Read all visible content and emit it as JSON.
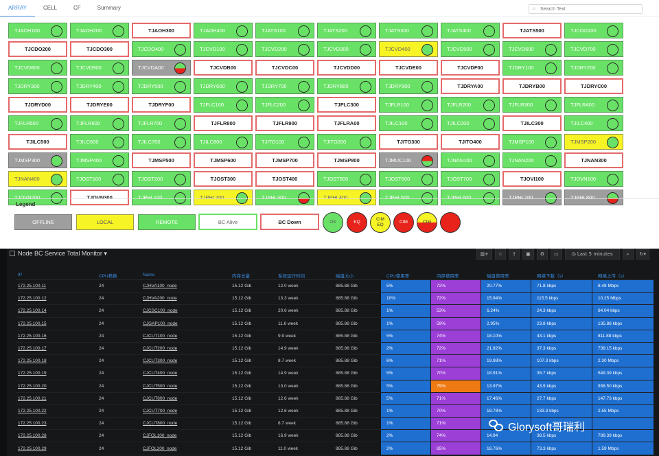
{
  "tabs": [
    "ARRAY",
    "CELL",
    "CF",
    "Summary"
  ],
  "search": {
    "placeholder": "Search Text"
  },
  "colors": {
    "remote": "#69e166",
    "local": "#f7f425",
    "offline": "#9e9e9e",
    "down_border": "#e46a6a",
    "alarm_red": "#e8231c",
    "grafana_bg": "#161719",
    "cell_blue": "#1f6fd0",
    "cell_purple": "#9b3fd6",
    "cell_orange": "#ef7a13"
  },
  "nodes": [
    {
      "name": "TJAOH100",
      "status": "REMOTE",
      "ind": "ok"
    },
    {
      "name": "TJAOH200",
      "status": "REMOTE",
      "ind": "ok"
    },
    {
      "name": "TJAOH300",
      "status": "DOWN",
      "ind": "none"
    },
    {
      "name": "TJAOH400",
      "status": "REMOTE",
      "ind": "ok"
    },
    {
      "name": "TJATS100",
      "status": "REMOTE",
      "ind": "ok"
    },
    {
      "name": "TJATS200",
      "status": "REMOTE",
      "ind": "ok"
    },
    {
      "name": "TJATS300",
      "status": "REMOTE",
      "ind": "ok"
    },
    {
      "name": "TJATS400",
      "status": "REMOTE",
      "ind": "ok"
    },
    {
      "name": "TJATS500",
      "status": "DOWN",
      "ind": "none"
    },
    {
      "name": "TJCDO100",
      "status": "REMOTE",
      "ind": "ok"
    },
    {
      "name": "TJCDO200",
      "status": "DOWN",
      "ind": "none"
    },
    {
      "name": "TJCDO300",
      "status": "DOWN",
      "ind": "none"
    },
    {
      "name": "TJCDO400",
      "status": "REMOTE",
      "ind": "ok"
    },
    {
      "name": "TJCVD100",
      "status": "REMOTE",
      "ind": "ok"
    },
    {
      "name": "TJCVD200",
      "status": "REMOTE",
      "ind": "ok"
    },
    {
      "name": "TJCVD300",
      "status": "REMOTE",
      "ind": "ok"
    },
    {
      "name": "TJCVD400",
      "status": "LOCAL",
      "ind": "ok"
    },
    {
      "name": "TJCVD500",
      "status": "REMOTE",
      "ind": "ok"
    },
    {
      "name": "TJCVD600",
      "status": "REMOTE",
      "ind": "ok"
    },
    {
      "name": "TJCVD700",
      "status": "REMOTE",
      "ind": "ok"
    },
    {
      "name": "TJCVD800",
      "status": "REMOTE",
      "ind": "ok"
    },
    {
      "name": "TJCVD900",
      "status": "REMOTE",
      "ind": "ok"
    },
    {
      "name": "TJCVDA00",
      "status": "OFFLINE",
      "ind": "eq"
    },
    {
      "name": "TJCVDB00",
      "status": "DOWN",
      "ind": "none"
    },
    {
      "name": "TJCVDC00",
      "status": "DOWN",
      "ind": "none"
    },
    {
      "name": "TJCVDD00",
      "status": "DOWN",
      "ind": "none"
    },
    {
      "name": "TJCVDE00",
      "status": "DOWN",
      "ind": "none"
    },
    {
      "name": "TJCVDF00",
      "status": "DOWN",
      "ind": "none"
    },
    {
      "name": "TJDRY100",
      "status": "REMOTE",
      "ind": "ok"
    },
    {
      "name": "TJDRY200",
      "status": "REMOTE",
      "ind": "ok"
    },
    {
      "name": "TJDRY300",
      "status": "REMOTE",
      "ind": "ok"
    },
    {
      "name": "TJDRY400",
      "status": "REMOTE",
      "ind": "ok"
    },
    {
      "name": "TJDRY500",
      "status": "REMOTE",
      "ind": "ok"
    },
    {
      "name": "TJDRY600",
      "status": "REMOTE",
      "ind": "ok"
    },
    {
      "name": "TJDRY700",
      "status": "REMOTE",
      "ind": "ok"
    },
    {
      "name": "TJDRY800",
      "status": "REMOTE",
      "ind": "ok"
    },
    {
      "name": "TJDRY900",
      "status": "REMOTE",
      "ind": "ok"
    },
    {
      "name": "TJDRYA00",
      "status": "DOWN",
      "ind": "none"
    },
    {
      "name": "TJDRYB00",
      "status": "DOWN",
      "ind": "none"
    },
    {
      "name": "TJDRYC00",
      "status": "DOWN",
      "ind": "none"
    },
    {
      "name": "TJDRYD00",
      "status": "DOWN",
      "ind": "none"
    },
    {
      "name": "TJDRYE00",
      "status": "DOWN",
      "ind": "none"
    },
    {
      "name": "TJDRYF00",
      "status": "DOWN",
      "ind": "none"
    },
    {
      "name": "TJFLC100",
      "status": "REMOTE",
      "ind": "ok"
    },
    {
      "name": "TJFLC200",
      "status": "REMOTE",
      "ind": "ok"
    },
    {
      "name": "TJFLC300",
      "status": "DOWN",
      "ind": "none"
    },
    {
      "name": "TJFLR100",
      "status": "REMOTE",
      "ind": "ok"
    },
    {
      "name": "TJFLR200",
      "status": "REMOTE",
      "ind": "ok"
    },
    {
      "name": "TJFLR300",
      "status": "REMOTE",
      "ind": "ok"
    },
    {
      "name": "TJFLR400",
      "status": "REMOTE",
      "ind": "ok"
    },
    {
      "name": "TJFLR500",
      "status": "REMOTE",
      "ind": "ok"
    },
    {
      "name": "TJFLR600",
      "status": "REMOTE",
      "ind": "ok"
    },
    {
      "name": "TJFLR700",
      "status": "REMOTE",
      "ind": "ok"
    },
    {
      "name": "TJFLR800",
      "status": "DOWN",
      "ind": "none"
    },
    {
      "name": "TJFLR900",
      "status": "DOWN",
      "ind": "none"
    },
    {
      "name": "TJFLRA00",
      "status": "DOWN",
      "ind": "none"
    },
    {
      "name": "TJILC100",
      "status": "REMOTE",
      "ind": "ok"
    },
    {
      "name": "TJILC200",
      "status": "REMOTE",
      "ind": "ok"
    },
    {
      "name": "TJILC300",
      "status": "DOWN",
      "ind": "none"
    },
    {
      "name": "TJILC400",
      "status": "REMOTE",
      "ind": "ok"
    },
    {
      "name": "TJILC500",
      "status": "DOWN",
      "ind": "none"
    },
    {
      "name": "TJILC600",
      "status": "REMOTE",
      "ind": "ok"
    },
    {
      "name": "TJILC700",
      "status": "REMOTE",
      "ind": "ok"
    },
    {
      "name": "TJILC800",
      "status": "REMOTE",
      "ind": "ok"
    },
    {
      "name": "TJITO100",
      "status": "REMOTE",
      "ind": "ok"
    },
    {
      "name": "TJITO200",
      "status": "REMOTE",
      "ind": "ok"
    },
    {
      "name": "TJITO300",
      "status": "DOWN",
      "ind": "none"
    },
    {
      "name": "TJITO400",
      "status": "DOWN",
      "ind": "none"
    },
    {
      "name": "TJMSP100",
      "status": "REMOTE",
      "ind": "ok"
    },
    {
      "name": "TJMSP200",
      "status": "LOCAL",
      "ind": "ok"
    },
    {
      "name": "TJMSP300",
      "status": "OFFLINE",
      "ind": "ok"
    },
    {
      "name": "TJMSP400",
      "status": "REMOTE",
      "ind": "ok"
    },
    {
      "name": "TJMSP500",
      "status": "DOWN",
      "ind": "none"
    },
    {
      "name": "TJMSP600",
      "status": "DOWN",
      "ind": "none"
    },
    {
      "name": "TJMSP700",
      "status": "DOWN",
      "ind": "none"
    },
    {
      "name": "TJMSP800",
      "status": "DOWN",
      "ind": "none"
    },
    {
      "name": "TJMUC100",
      "status": "OFFLINE",
      "ind": "cimeq"
    },
    {
      "name": "TJNAN100",
      "status": "REMOTE",
      "ind": "ok"
    },
    {
      "name": "TJNAN200",
      "status": "REMOTE",
      "ind": "ok"
    },
    {
      "name": "TJNAN300",
      "status": "DOWN",
      "ind": "none"
    },
    {
      "name": "TJNAN400",
      "status": "LOCAL",
      "ind": "ok"
    },
    {
      "name": "TJOST100",
      "status": "REMOTE",
      "ind": "ok"
    },
    {
      "name": "TJOST200",
      "status": "REMOTE",
      "ind": "ok"
    },
    {
      "name": "TJOST300",
      "status": "DOWN",
      "ind": "none"
    },
    {
      "name": "TJOST400",
      "status": "DOWN",
      "ind": "none"
    },
    {
      "name": "TJOST500",
      "status": "REMOTE",
      "ind": "ok"
    },
    {
      "name": "TJOST600",
      "status": "REMOTE",
      "ind": "ok"
    },
    {
      "name": "TJOST700",
      "status": "REMOTE",
      "ind": "ok"
    },
    {
      "name": "TJOVI100",
      "status": "DOWN",
      "ind": "none"
    },
    {
      "name": "TJOVN100",
      "status": "REMOTE",
      "ind": "ok"
    },
    {
      "name": "TJOVN200",
      "status": "REMOTE",
      "ind": "ok"
    },
    {
      "name": "TJOVN300",
      "status": "DOWN",
      "ind": "none"
    },
    {
      "name": "TJPHL100",
      "status": "REMOTE",
      "ind": "ok"
    },
    {
      "name": "TJPHL200",
      "status": "LOCAL",
      "ind": "ok"
    },
    {
      "name": "TJPHL300",
      "status": "REMOTE",
      "ind": "eq"
    },
    {
      "name": "TJPHL400",
      "status": "LOCAL",
      "ind": "ok"
    },
    {
      "name": "TJPHL500",
      "status": "REMOTE",
      "ind": "ok"
    },
    {
      "name": "TJPHL600",
      "status": "REMOTE",
      "ind": "ok"
    },
    {
      "name": "TJPHL700",
      "status": "OFFLINE",
      "ind": "ok"
    },
    {
      "name": "TJPHL800",
      "status": "OFFLINE",
      "ind": "eq"
    }
  ],
  "legend": {
    "title": "Legend",
    "offline": "OFFLINE",
    "local": "LOCAL",
    "remote": "REMOTE",
    "bc_alive": "BC Alive",
    "bc_down": "BC Down",
    "circles": [
      {
        "top": "OK",
        "bottom": "",
        "style": "ok"
      },
      {
        "top": "",
        "bottom": "EQ",
        "style": "eq"
      },
      {
        "top": "CIM",
        "bottom": "EQ",
        "style": "cimeq_y"
      },
      {
        "top": "CIM",
        "bottom": "",
        "style": "cim_r"
      },
      {
        "top": "CIM",
        "bottom": "",
        "style": "cim_y"
      },
      {
        "top": "",
        "bottom": "",
        "style": "red"
      }
    ]
  },
  "dashboard": {
    "title": "Node BC Service Total Monitor",
    "caret": "▾",
    "time_range": "Last 5 minutes",
    "toolbar_icons": [
      "graph-add-icon",
      "star-icon",
      "share-icon",
      "save-icon",
      "settings-icon",
      "tv-icon",
      "clock-icon",
      "zoom-icon",
      "refresh-icon"
    ],
    "columns": [
      "IP",
      "CPU核数",
      "Name",
      "内存总量",
      "系统运行时间",
      "磁盘大小",
      "CPU使用率",
      "内存使用率",
      "磁盘使用率",
      "网络下载（s）",
      "网络上传（s）"
    ],
    "rows": [
      {
        "ip": "172.25.100.11",
        "cpu": "24",
        "name": "CJHVA100_node",
        "mem": "15.12 Gib",
        "uptime": "12.0 week",
        "disk": "885.88 Gib",
        "cpu_use": "5%",
        "mem_use": "72%",
        "mem_color": "purple",
        "disk_use": "20.77%",
        "net_down": "71.8 kbps",
        "net_up": "8.48 Mbps"
      },
      {
        "ip": "172.25.100.12",
        "cpu": "24",
        "name": "CJHVA200_node",
        "mem": "15.12 Gib",
        "uptime": "13.3 week",
        "disk": "885.88 Gib",
        "cpu_use": "10%",
        "mem_use": "72%",
        "mem_color": "purple",
        "disk_use": "15.94%",
        "net_down": "115.5 kbps",
        "net_up": "10.25 Mbps"
      },
      {
        "ip": "172.25.100.14",
        "cpu": "24",
        "name": "CJCSC100_node",
        "mem": "15.12 Gib",
        "uptime": "20.6 week",
        "disk": "885.88 Gib",
        "cpu_use": "1%",
        "mem_use": "53%",
        "mem_color": "purple",
        "disk_use": "6.24%",
        "net_down": "24.3 kbps",
        "net_up": "64.04 kbps"
      },
      {
        "ip": "172.25.100.15",
        "cpu": "24",
        "name": "CJGAP100_node",
        "mem": "15.12 Gib",
        "uptime": "11.6 week",
        "disk": "885.88 Gib",
        "cpu_use": "1%",
        "mem_use": "59%",
        "mem_color": "purple",
        "disk_use": "2.95%",
        "net_down": "23.8 kbps",
        "net_up": "135.88 kbps"
      },
      {
        "ip": "172.25.100.16",
        "cpu": "24",
        "name": "CJCUT100_node",
        "mem": "15.12 Gib",
        "uptime": "9.9 week",
        "disk": "885.88 Gib",
        "cpu_use": "5%",
        "mem_use": "74%",
        "mem_color": "purple",
        "disk_use": "18.10%",
        "net_down": "43.1 kbps",
        "net_up": "811.88 kbps"
      },
      {
        "ip": "172.25.100.17",
        "cpu": "24",
        "name": "CJCUT200_node",
        "mem": "15.12 Gib",
        "uptime": "14.9 week",
        "disk": "885.88 Gib",
        "cpu_use": "2%",
        "mem_use": "72%",
        "mem_color": "purple",
        "disk_use": "21.82%",
        "net_down": "37.3 kbps",
        "net_up": "739.15 kbps"
      },
      {
        "ip": "172.25.100.18",
        "cpu": "24",
        "name": "CJCUT300_node",
        "mem": "15.12 Gib",
        "uptime": "8.7 week",
        "disk": "885.88 Gib",
        "cpu_use": "6%",
        "mem_use": "71%",
        "mem_color": "purple",
        "disk_use": "19.98%",
        "net_down": "107.3 kbps",
        "net_up": "2.30 Mbps"
      },
      {
        "ip": "172.25.100.19",
        "cpu": "24",
        "name": "CJCUT400_node",
        "mem": "15.12 Gib",
        "uptime": "14.9 week",
        "disk": "885.88 Gib",
        "cpu_use": "5%",
        "mem_use": "70%",
        "mem_color": "purple",
        "disk_use": "18.91%",
        "net_down": "35.7 kbps",
        "net_up": "549.39 kbps"
      },
      {
        "ip": "172.25.100.20",
        "cpu": "24",
        "name": "CJCUT500_node",
        "mem": "15.12 Gib",
        "uptime": "13.0 week",
        "disk": "885.88 Gib",
        "cpu_use": "5%",
        "mem_use": "79%",
        "mem_color": "orange",
        "disk_use": "13.97%",
        "net_down": "43.9 kbps",
        "net_up": "938.50 kbps"
      },
      {
        "ip": "172.25.100.21",
        "cpu": "24",
        "name": "CJCUT600_node",
        "mem": "15.12 Gib",
        "uptime": "12.6 week",
        "disk": "885.88 Gib",
        "cpu_use": "5%",
        "mem_use": "71%",
        "mem_color": "purple",
        "disk_use": "17.46%",
        "net_down": "27.7 kbps",
        "net_up": "147.73 kbps"
      },
      {
        "ip": "172.25.100.22",
        "cpu": "24",
        "name": "CJCUT700_node",
        "mem": "15.12 Gib",
        "uptime": "12.6 week",
        "disk": "885.88 Gib",
        "cpu_use": "1%",
        "mem_use": "70%",
        "mem_color": "purple",
        "disk_use": "18.78%",
        "net_down": "133.3 kbps",
        "net_up": "2.55 Mbps"
      },
      {
        "ip": "172.25.100.23",
        "cpu": "24",
        "name": "CJCUT800_node",
        "mem": "15.12 Gib",
        "uptime": "8.7 week",
        "disk": "885.88 Gib",
        "cpu_use": "1%",
        "mem_use": "71%",
        "mem_color": "purple",
        "disk_use": "",
        "net_down": "",
        "net_up": ""
      },
      {
        "ip": "172.25.100.28",
        "cpu": "24",
        "name": "CJFOL100_node",
        "mem": "15.12 Gib",
        "uptime": "16.9 week",
        "disk": "885.88 Gib",
        "cpu_use": "2%",
        "mem_use": "74%",
        "mem_color": "purple",
        "disk_use": "14.94",
        "net_down": "38.5 kbps",
        "net_up": "789.39 kbps"
      },
      {
        "ip": "172.25.100.29",
        "cpu": "24",
        "name": "CJFOL200_node",
        "mem": "15.12 Gib",
        "uptime": "11.0 week",
        "disk": "885.88 Gib",
        "cpu_use": "2%",
        "mem_use": "65%",
        "mem_color": "purple",
        "disk_use": "16.76%",
        "net_down": "73.3 kbps",
        "net_up": "1.59 Mbps"
      }
    ]
  },
  "watermark": "Glorysoft哥瑞利"
}
